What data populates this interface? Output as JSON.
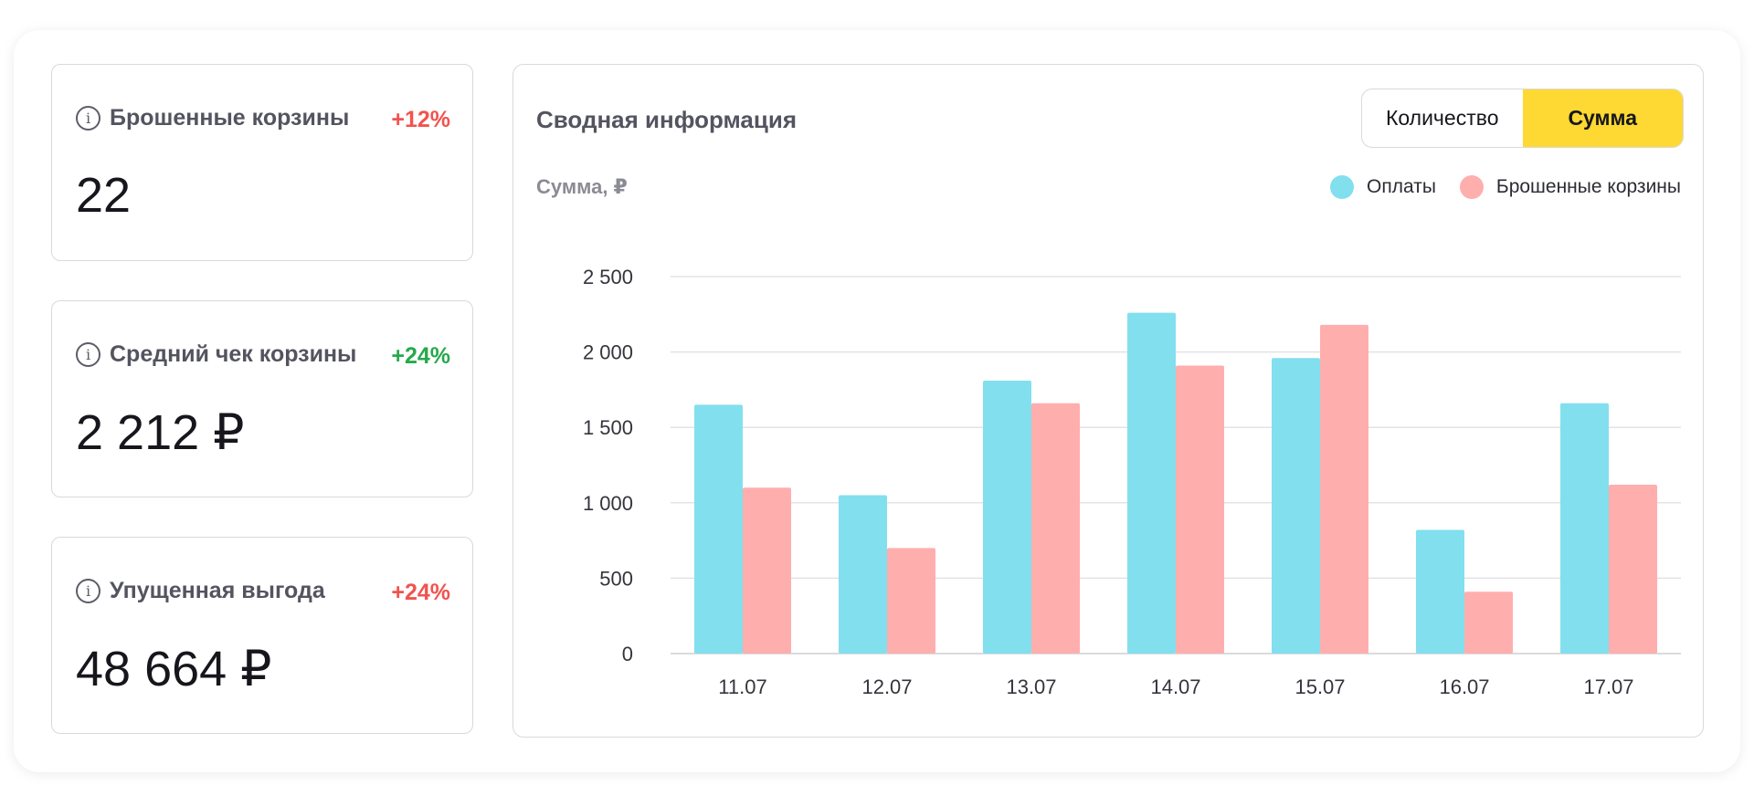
{
  "metrics": [
    {
      "title": "Брошенные корзины",
      "delta": "+12%",
      "delta_color": "#f2534f",
      "value": "22"
    },
    {
      "title": "Средний чек корзины",
      "delta": "+24%",
      "delta_color": "#26a94b",
      "value": "2 212 ₽"
    },
    {
      "title": "Упущенная выгода",
      "delta": "+24%",
      "delta_color": "#f2534f",
      "value": "48 664 ₽"
    }
  ],
  "summary": {
    "title": "Сводная информация",
    "toggle": {
      "options": [
        "Количество",
        "Сумма"
      ],
      "selected": "Сумма"
    }
  },
  "chart_data": {
    "type": "bar",
    "ylabel": "Сумма, ₽",
    "categories": [
      "11.07",
      "12.07",
      "13.07",
      "14.07",
      "15.07",
      "16.07",
      "17.07"
    ],
    "series": [
      {
        "name": "Оплаты",
        "color": "#82dfee",
        "values": [
          1650,
          1050,
          1810,
          2260,
          1960,
          820,
          1660
        ]
      },
      {
        "name": "Брошенные корзины",
        "color": "#ffaeae",
        "values": [
          1100,
          700,
          1660,
          1910,
          2180,
          410,
          1120
        ]
      }
    ],
    "y_ticks": [
      0,
      500,
      1000,
      1500,
      2000,
      2500
    ],
    "y_tick_labels": [
      "0",
      "500",
      "1 000",
      "1 500",
      "2 000",
      "2 500"
    ],
    "ylim": [
      0,
      2500
    ],
    "grid": true,
    "legend": "top-right"
  }
}
